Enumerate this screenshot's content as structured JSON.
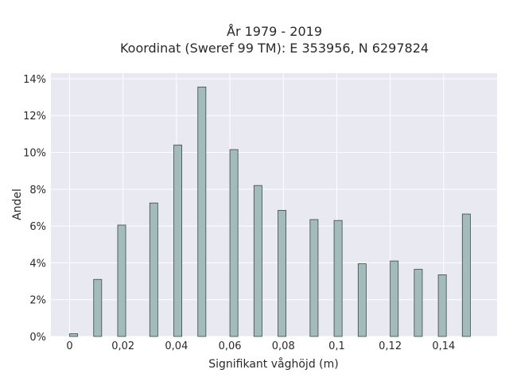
{
  "chart_data": {
    "type": "bar",
    "title": "År 1979 - 2019",
    "subtitle": "Koordinat (Sweref 99 TM): E 353956, N 6297824",
    "xlabel": "Signifikant våghöjd (m)",
    "ylabel": "Andel",
    "xlim": [
      -0.007,
      0.16
    ],
    "ylim": [
      0,
      14.3
    ],
    "bar_width": 0.003,
    "x_ticks": [
      0,
      0.02,
      0.04,
      0.06,
      0.08,
      0.1,
      0.12,
      0.14
    ],
    "x_tick_labels": [
      "0",
      "0,02",
      "0,04",
      "0,06",
      "0,08",
      "0,1",
      "0,12",
      "0,14"
    ],
    "y_ticks": [
      0,
      2,
      4,
      6,
      8,
      10,
      12,
      14
    ],
    "y_tick_labels": [
      "0%",
      "2%",
      "4%",
      "6%",
      "8%",
      "10%",
      "12%",
      "14%"
    ],
    "grid": true,
    "bar_color": "#a3bbbb",
    "bar_edge_color": "#3a4a48",
    "plot_background": "#e9e9f1",
    "x": [
      0.0015,
      0.0105,
      0.0195,
      0.0315,
      0.0405,
      0.0495,
      0.0615,
      0.0705,
      0.0795,
      0.0915,
      0.1005,
      0.1095,
      0.1215,
      0.1305,
      0.1395,
      0.1485
    ],
    "values": [
      0.15,
      3.1,
      6.05,
      7.25,
      10.4,
      13.55,
      10.15,
      8.2,
      6.85,
      6.35,
      6.3,
      3.95,
      4.1,
      3.65,
      3.35,
      6.65
    ]
  }
}
